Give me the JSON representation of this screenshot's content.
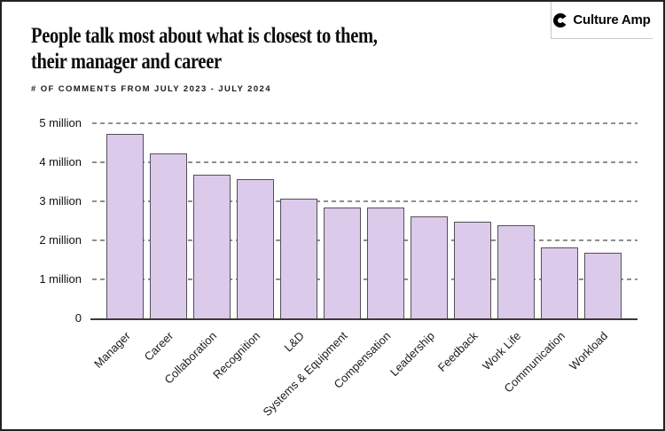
{
  "brand": {
    "name": "Culture Amp"
  },
  "header": {
    "title_lines": [
      "People talk most about what is closest to them,",
      "their manager and career"
    ],
    "subtitle": "# OF COMMENTS FROM JULY 2023 - JULY 2024"
  },
  "chart_data": {
    "type": "bar",
    "title": "People talk most about what is closest to them, their manager and career",
    "subtitle": "# OF COMMENTS FROM JULY 2023 - JULY 2024",
    "unit": "millions of comments",
    "categories": [
      "Manager",
      "Career",
      "Collaboration",
      "Recognition",
      "L&D",
      "Systems & Equipment",
      "Compensation",
      "Leadership",
      "Feedback",
      "Work Life",
      "Communication",
      "Workload"
    ],
    "values": [
      4.72,
      4.22,
      3.68,
      3.57,
      3.06,
      2.84,
      2.83,
      2.61,
      2.47,
      2.38,
      1.81,
      1.68
    ],
    "xlabel": "",
    "ylabel": "",
    "ylim": [
      0,
      5
    ],
    "yticks": [
      {
        "value": 5,
        "label": "5 million"
      },
      {
        "value": 4,
        "label": "4 million"
      },
      {
        "value": 3,
        "label": "3 million"
      },
      {
        "value": 2,
        "label": "2 million"
      },
      {
        "value": 1,
        "label": "1 million"
      },
      {
        "value": 0,
        "label": "0"
      }
    ],
    "grid": "horizontal dashed",
    "legend": "none",
    "colors": {
      "bar_fill": "#dccaeb",
      "bar_border": "#544f5a",
      "gridline": "#8f8f8f",
      "axis": "#3a3a3a"
    }
  }
}
